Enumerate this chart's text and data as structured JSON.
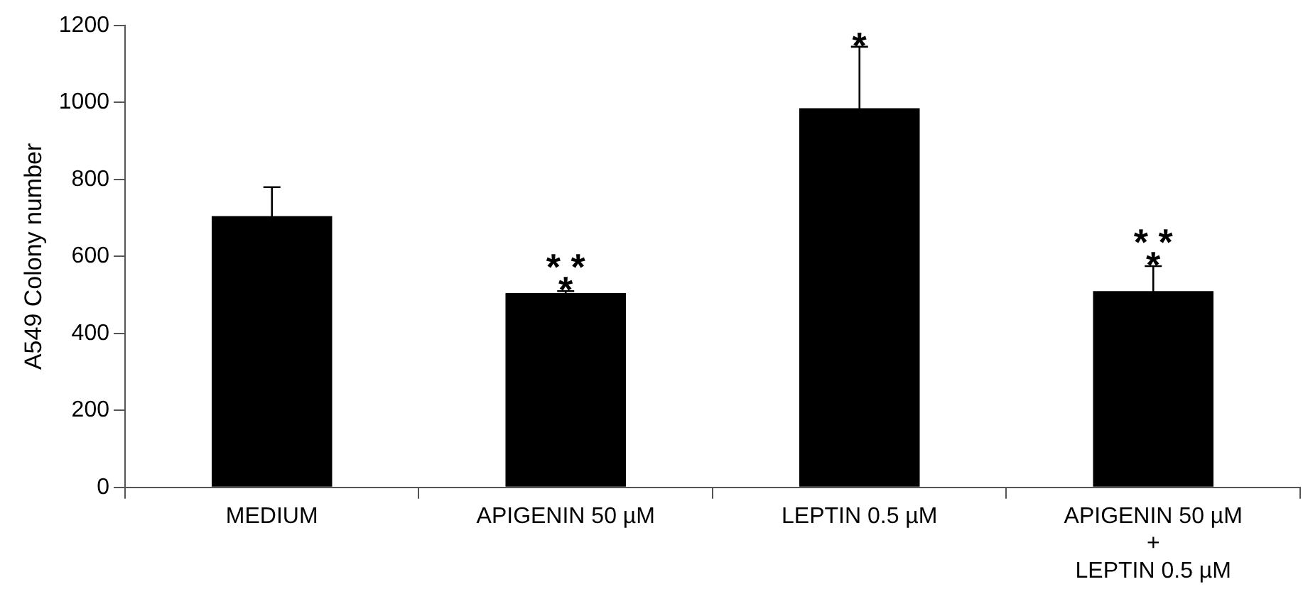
{
  "chart_data": {
    "type": "bar",
    "ylabel": "A549 Colony number",
    "categories": [
      "MEDIUM",
      "APIGENIN 50 µM",
      "LEPTIN 0.5 µM",
      "APIGENIN 50 µM\n+\nLEPTIN 0.5 µM"
    ],
    "values": [
      705,
      505,
      985,
      510
    ],
    "errors": [
      75,
      5,
      160,
      65
    ],
    "color": "#000000",
    "value_labels": [
      null,
      "* *\n*",
      "*",
      "* *\n*"
    ],
    "ylim": [
      0,
      1200
    ],
    "yticks": [
      0,
      200,
      400,
      600,
      800,
      1000,
      1200
    ],
    "grid": false,
    "legend": false
  }
}
